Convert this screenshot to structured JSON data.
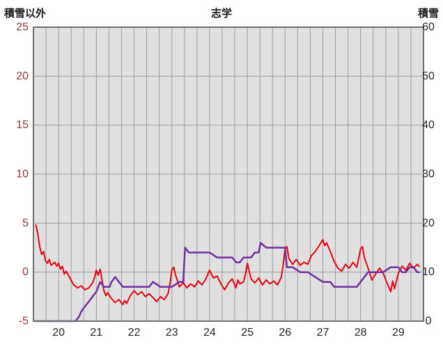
{
  "header": {
    "left_axis_title": "積雪以外",
    "title": "志学",
    "right_axis_title": "積雪"
  },
  "chart_data": {
    "type": "line",
    "title": "志学",
    "subtitle": "",
    "legend_position": "none",
    "grid": true,
    "x_axis": {
      "label": "",
      "min": 19.333,
      "max": 29.667,
      "minor_step": 0.33333,
      "labels": [
        20,
        21,
        22,
        23,
        24,
        25,
        26,
        27,
        28,
        29
      ]
    },
    "left_axis": {
      "label": "積雪以外",
      "min": -5,
      "max": 25,
      "ticks": [
        25,
        20,
        15,
        10,
        5,
        0,
        -5
      ]
    },
    "right_axis": {
      "label": "積雪",
      "min": 0,
      "max": 60,
      "ticks": [
        60,
        50,
        40,
        30,
        20,
        10,
        0
      ]
    },
    "plot_colors": {
      "background": "#e0e0e0",
      "grid": "#9e9e9e",
      "border": "#6f6f6f",
      "left_tick_text": "#8c3b32",
      "right_tick_text": "#262626",
      "x_tick_text": "#262626"
    },
    "series": [
      {
        "name": "積雪以外",
        "axis": "left",
        "color": "#e60012",
        "width": 2,
        "points": [
          [
            19.4,
            4.8
          ],
          [
            19.45,
            3.9
          ],
          [
            19.5,
            2.6
          ],
          [
            19.55,
            1.8
          ],
          [
            19.6,
            2.1
          ],
          [
            19.65,
            1.2
          ],
          [
            19.7,
            0.9
          ],
          [
            19.75,
            1.3
          ],
          [
            19.8,
            0.7
          ],
          [
            19.9,
            1.0
          ],
          [
            19.95,
            0.6
          ],
          [
            20.0,
            0.9
          ],
          [
            20.05,
            0.3
          ],
          [
            20.1,
            0.6
          ],
          [
            20.15,
            -0.2
          ],
          [
            20.2,
            0.1
          ],
          [
            20.3,
            -0.6
          ],
          [
            20.4,
            -1.3
          ],
          [
            20.5,
            -1.6
          ],
          [
            20.6,
            -1.4
          ],
          [
            20.7,
            -1.8
          ],
          [
            20.8,
            -1.6
          ],
          [
            20.9,
            -1.1
          ],
          [
            20.95,
            -0.6
          ],
          [
            21.0,
            0.2
          ],
          [
            21.05,
            -0.3
          ],
          [
            21.1,
            0.3
          ],
          [
            21.15,
            -0.8
          ],
          [
            21.2,
            -1.9
          ],
          [
            21.25,
            -2.4
          ],
          [
            21.3,
            -2.1
          ],
          [
            21.4,
            -2.7
          ],
          [
            21.5,
            -3.1
          ],
          [
            21.6,
            -2.8
          ],
          [
            21.7,
            -3.3
          ],
          [
            21.75,
            -2.9
          ],
          [
            21.8,
            -3.2
          ],
          [
            21.9,
            -2.4
          ],
          [
            22.0,
            -1.9
          ],
          [
            22.1,
            -2.3
          ],
          [
            22.2,
            -2.0
          ],
          [
            22.3,
            -2.5
          ],
          [
            22.4,
            -2.2
          ],
          [
            22.5,
            -2.6
          ],
          [
            22.6,
            -3.0
          ],
          [
            22.7,
            -2.5
          ],
          [
            22.8,
            -2.8
          ],
          [
            22.9,
            -2.2
          ],
          [
            22.95,
            -1.2
          ],
          [
            23.0,
            0.2
          ],
          [
            23.05,
            0.5
          ],
          [
            23.1,
            -0.3
          ],
          [
            23.2,
            -1.5
          ],
          [
            23.3,
            -1.1
          ],
          [
            23.4,
            -1.6
          ],
          [
            23.5,
            -1.2
          ],
          [
            23.6,
            -1.5
          ],
          [
            23.7,
            -0.9
          ],
          [
            23.8,
            -1.3
          ],
          [
            23.9,
            -0.7
          ],
          [
            24.0,
            0.2
          ],
          [
            24.1,
            -0.6
          ],
          [
            24.2,
            -0.4
          ],
          [
            24.3,
            -1.2
          ],
          [
            24.4,
            -1.8
          ],
          [
            24.5,
            -1.1
          ],
          [
            24.6,
            -0.7
          ],
          [
            24.7,
            -1.6
          ],
          [
            24.75,
            -0.8
          ],
          [
            24.8,
            -1.2
          ],
          [
            24.9,
            -1.0
          ],
          [
            24.95,
            -0.2
          ],
          [
            25.0,
            0.9
          ],
          [
            25.05,
            0.1
          ],
          [
            25.1,
            -0.7
          ],
          [
            25.2,
            -1.1
          ],
          [
            25.3,
            -0.6
          ],
          [
            25.4,
            -1.3
          ],
          [
            25.5,
            -0.8
          ],
          [
            25.6,
            -1.2
          ],
          [
            25.7,
            -0.9
          ],
          [
            25.8,
            -1.3
          ],
          [
            25.9,
            -0.5
          ],
          [
            25.95,
            0.8
          ],
          [
            26.0,
            2.4
          ],
          [
            26.05,
            2.6
          ],
          [
            26.1,
            1.4
          ],
          [
            26.2,
            0.8
          ],
          [
            26.3,
            1.3
          ],
          [
            26.4,
            0.7
          ],
          [
            26.5,
            1.0
          ],
          [
            26.6,
            0.8
          ],
          [
            26.7,
            1.7
          ],
          [
            26.8,
            2.1
          ],
          [
            26.9,
            2.7
          ],
          [
            27.0,
            3.3
          ],
          [
            27.05,
            2.7
          ],
          [
            27.1,
            3.0
          ],
          [
            27.2,
            2.1
          ],
          [
            27.3,
            1.1
          ],
          [
            27.4,
            0.4
          ],
          [
            27.5,
            0.1
          ],
          [
            27.6,
            0.8
          ],
          [
            27.7,
            0.4
          ],
          [
            27.8,
            1.0
          ],
          [
            27.9,
            0.5
          ],
          [
            27.95,
            1.4
          ],
          [
            28.0,
            2.4
          ],
          [
            28.05,
            2.6
          ],
          [
            28.1,
            1.5
          ],
          [
            28.2,
            0.4
          ],
          [
            28.3,
            -0.8
          ],
          [
            28.4,
            -0.2
          ],
          [
            28.5,
            0.4
          ],
          [
            28.6,
            -0.1
          ],
          [
            28.7,
            -1.1
          ],
          [
            28.8,
            -2.0
          ],
          [
            28.85,
            -0.9
          ],
          [
            28.9,
            -1.7
          ],
          [
            29.0,
            -0.1
          ],
          [
            29.1,
            0.6
          ],
          [
            29.2,
            0.2
          ],
          [
            29.3,
            0.9
          ],
          [
            29.4,
            0.4
          ],
          [
            29.5,
            0.8
          ],
          [
            29.55,
            0.6
          ]
        ]
      },
      {
        "name": "積雪",
        "axis": "right",
        "color": "#7030a0",
        "width": 2.5,
        "points": [
          [
            19.4,
            0
          ],
          [
            20.45,
            0
          ],
          [
            20.55,
            1
          ],
          [
            20.6,
            2
          ],
          [
            20.7,
            3
          ],
          [
            20.8,
            4
          ],
          [
            20.9,
            5
          ],
          [
            21.0,
            6
          ],
          [
            21.05,
            7
          ],
          [
            21.1,
            8
          ],
          [
            21.2,
            7
          ],
          [
            21.35,
            7
          ],
          [
            21.4,
            8
          ],
          [
            21.5,
            9
          ],
          [
            21.6,
            8
          ],
          [
            21.7,
            7
          ],
          [
            22.0,
            7
          ],
          [
            22.4,
            7
          ],
          [
            22.5,
            8
          ],
          [
            22.7,
            7
          ],
          [
            23.0,
            7
          ],
          [
            23.2,
            8
          ],
          [
            23.3,
            8
          ],
          [
            23.35,
            15
          ],
          [
            23.45,
            14
          ],
          [
            23.6,
            14
          ],
          [
            23.8,
            14
          ],
          [
            24.0,
            14
          ],
          [
            24.2,
            13
          ],
          [
            24.4,
            13
          ],
          [
            24.6,
            13
          ],
          [
            24.7,
            12
          ],
          [
            24.8,
            12
          ],
          [
            24.9,
            13
          ],
          [
            25.1,
            13
          ],
          [
            25.2,
            14
          ],
          [
            25.3,
            14
          ],
          [
            25.35,
            16
          ],
          [
            25.5,
            15
          ],
          [
            25.7,
            15
          ],
          [
            25.9,
            15
          ],
          [
            26.0,
            15
          ],
          [
            26.05,
            11
          ],
          [
            26.2,
            11
          ],
          [
            26.4,
            10
          ],
          [
            26.6,
            10
          ],
          [
            26.8,
            9
          ],
          [
            27.0,
            8
          ],
          [
            27.2,
            8
          ],
          [
            27.3,
            7
          ],
          [
            27.6,
            7
          ],
          [
            27.9,
            7
          ],
          [
            28.0,
            8
          ],
          [
            28.1,
            9
          ],
          [
            28.2,
            10
          ],
          [
            28.4,
            10
          ],
          [
            28.6,
            10
          ],
          [
            28.8,
            11
          ],
          [
            29.0,
            11
          ],
          [
            29.1,
            10
          ],
          [
            29.2,
            10
          ],
          [
            29.3,
            11
          ],
          [
            29.4,
            11
          ],
          [
            29.5,
            10
          ],
          [
            29.55,
            10
          ]
        ]
      }
    ]
  }
}
